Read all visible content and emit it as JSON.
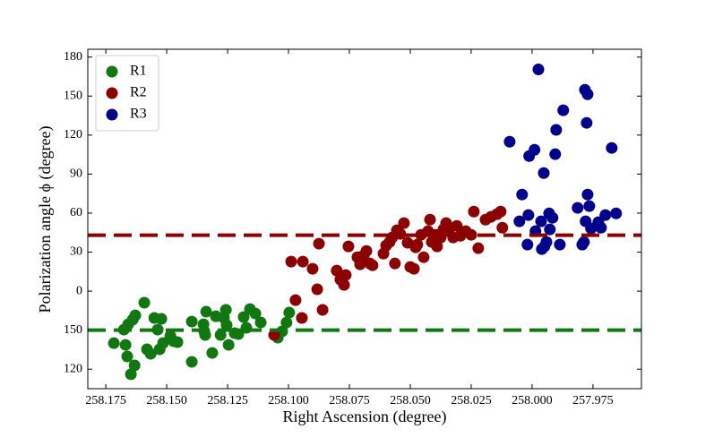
{
  "chart_data": {
    "type": "scatter",
    "xlabel": "Right Ascension (degree)",
    "ylabel": "Polarization angle ϕ (degree)",
    "xlim": [
      258.1824,
      257.9551
    ],
    "ylim": [
      -75,
      186
    ],
    "xticks": [
      258.175,
      {
        "value": 258.15,
        "label": "258.150"
      },
      258.125,
      {
        "value": 258.1,
        "label": "258.100"
      },
      258.075,
      {
        "value": 258.05,
        "label": "258.050"
      },
      258.025,
      {
        "value": 258,
        "label": "258.000"
      },
      257.975
    ],
    "yticks": [
      180,
      150,
      120,
      90,
      60,
      30,
      0,
      {
        "value": -30,
        "label": "150"
      },
      {
        "value": -60,
        "label": "120"
      }
    ],
    "legend": "upper left",
    "reference_lines": [
      {
        "value": 43,
        "color": "#8b0000"
      },
      {
        "value": -30,
        "color": "#117711"
      }
    ],
    "series": [
      {
        "name": "R1",
        "color": "#117711",
        "x": [
          258.1717,
          258.1669,
          258.1662,
          258.1647,
          258.1632,
          258.1676,
          258.1658,
          258.164,
          258.1629,
          258.1592,
          258.1581,
          258.1566,
          258.1551,
          258.1537,
          258.1529,
          258.1522,
          258.1515,
          258.1485,
          258.1471,
          258.1456,
          258.1397,
          258.1397,
          258.1349,
          258.1346,
          258.1342,
          258.1338,
          258.1313,
          258.1298,
          258.1279,
          258.1265,
          258.1257,
          258.1254,
          258.1246,
          258.1221,
          258.1206,
          258.1184,
          258.1173,
          258.1158,
          258.1136,
          258.1114,
          258.1044,
          258.1026,
          258.1008,
          258.0997
        ],
        "values": [
          -40,
          -41.3,
          -50.2,
          -63.9,
          -57.1,
          -29.6,
          -25.5,
          -22,
          -18.6,
          -8.9,
          -44.7,
          -48.2,
          -20.6,
          -29.6,
          -44.7,
          -21.3,
          -39.9,
          -34.4,
          -38.5,
          -39.2,
          -54.4,
          -23.4,
          -25.5,
          -30.9,
          -33.7,
          -15.8,
          -47.5,
          -19.3,
          -33.7,
          -20.6,
          -14.4,
          -26.1,
          -41.3,
          -32.3,
          -33,
          -19.9,
          -28.2,
          -13.8,
          -17.2,
          -24.1,
          -35.8,
          -30.9,
          -24.1,
          -16.5
        ]
      },
      {
        "name": "R2",
        "color": "#8b0000",
        "x": [
          258.1059,
          258.0971,
          258.0989,
          258.0941,
          258.0945,
          258.0901,
          258.0882,
          258.0875,
          258.086,
          258.0802,
          258.0787,
          258.0772,
          258.0765,
          258.0754,
          258.0717,
          258.0706,
          258.0691,
          258.068,
          258.0666,
          258.0655,
          258.061,
          258.0599,
          258.0585,
          258.0574,
          258.0563,
          258.0555,
          258.0541,
          258.0526,
          258.0511,
          258.05,
          258.0485,
          258.0478,
          258.0471,
          258.0456,
          258.0445,
          258.0427,
          258.0419,
          258.0412,
          258.0397,
          258.039,
          258.0375,
          258.0364,
          258.0353,
          258.0342,
          258.0324,
          258.0309,
          258.0294,
          258.0272,
          258.025,
          258.0239,
          258.0221,
          258.0191,
          258.0169,
          258.0144,
          258.0129,
          258.0122
        ],
        "values": [
          -33.7,
          -6.9,
          22.7,
          22.7,
          -20.6,
          17.2,
          1.4,
          36.5,
          -14.4,
          15.8,
          8.9,
          4.8,
          12.4,
          34.4,
          26.1,
          20.6,
          27.5,
          30.9,
          21.3,
          19.9,
          28.9,
          35.1,
          37.8,
          41.3,
          21.3,
          46.8,
          44,
          52.3,
          37.2,
          18.6,
          17.2,
          33.7,
          35.8,
          43.3,
          26.1,
          46.1,
          55,
          37.8,
          43.3,
          34.4,
          41.3,
          47.5,
          52.3,
          46.1,
          41.3,
          50.2,
          42.6,
          46.1,
          43.3,
          61.2,
          33,
          55,
          57.1,
          59.2,
          61.2,
          48.8
        ]
      },
      {
        "name": "R3",
        "color": "#00008b",
        "x": [
          258.0092,
          258.0041,
          258.0052,
          258.0019,
          258.0015,
          258.0012,
          257.999,
          257.9986,
          257.9974,
          257.9963,
          257.996,
          257.9952,
          257.9949,
          257.9941,
          257.993,
          257.9927,
          257.9916,
          257.9905,
          257.9901,
          257.9886,
          257.9872,
          257.9813,
          257.9794,
          257.9787,
          257.9783,
          257.978,
          257.9776,
          257.9772,
          257.9772,
          257.9765,
          257.9758,
          257.9728,
          257.9717,
          257.9699,
          257.9673,
          257.9655
        ],
        "values": [
          114.9,
          74.3,
          53.7,
          35.8,
          58.5,
          103.9,
          108.7,
          46.1,
          170.5,
          53.7,
          32.3,
          90.8,
          34.4,
          37.8,
          59.8,
          47.5,
          56.4,
          105.3,
          124,
          35.8,
          139.1,
          64,
          35.8,
          37.8,
          154.8,
          53.7,
          129.4,
          74.3,
          151.4,
          65.4,
          48.2,
          53,
          48.8,
          58.5,
          110.1,
          59.8
        ]
      }
    ]
  }
}
